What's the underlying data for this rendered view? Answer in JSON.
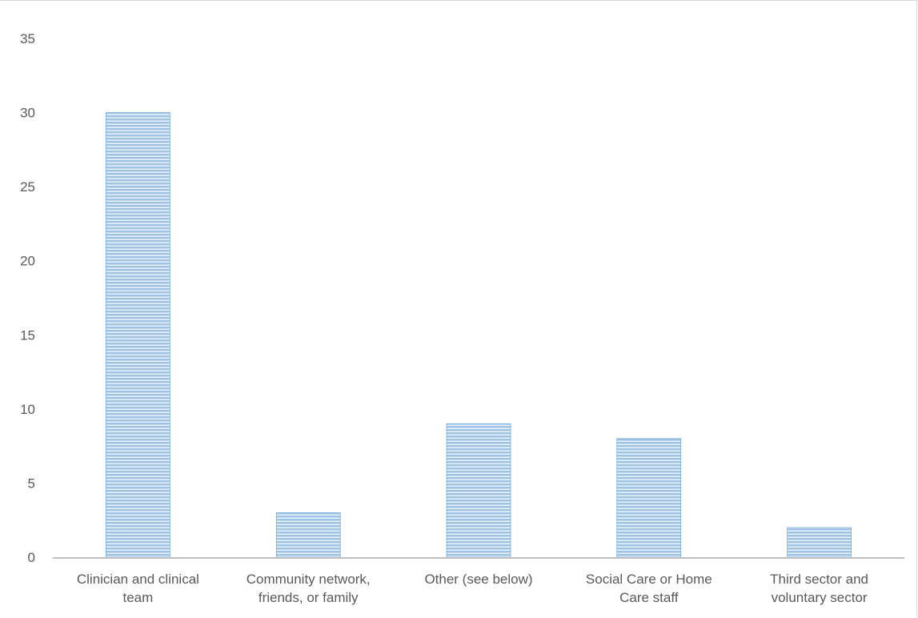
{
  "chart_data": {
    "type": "bar",
    "title": "",
    "xlabel": "",
    "ylabel": "",
    "categories": [
      [
        "Clinician and clinical",
        "team"
      ],
      [
        "Community network,",
        "friends, or family"
      ],
      [
        "Other (see below)"
      ],
      [
        "Social Care or Home",
        "Care staff"
      ],
      [
        "Third sector and",
        "voluntary sector"
      ]
    ],
    "values": [
      30,
      3,
      9,
      8,
      2
    ],
    "ylim": [
      0,
      35
    ],
    "yticks": [
      0,
      5,
      10,
      15,
      20,
      25,
      30,
      35
    ],
    "grid": false,
    "legend": "none",
    "colors": {
      "bar_fill": "#9dc3e6",
      "bar_stripe": "#ffffff",
      "bar_edge": "#5b9bd5",
      "axis": "#bfbfbf",
      "text": "#595959"
    }
  }
}
